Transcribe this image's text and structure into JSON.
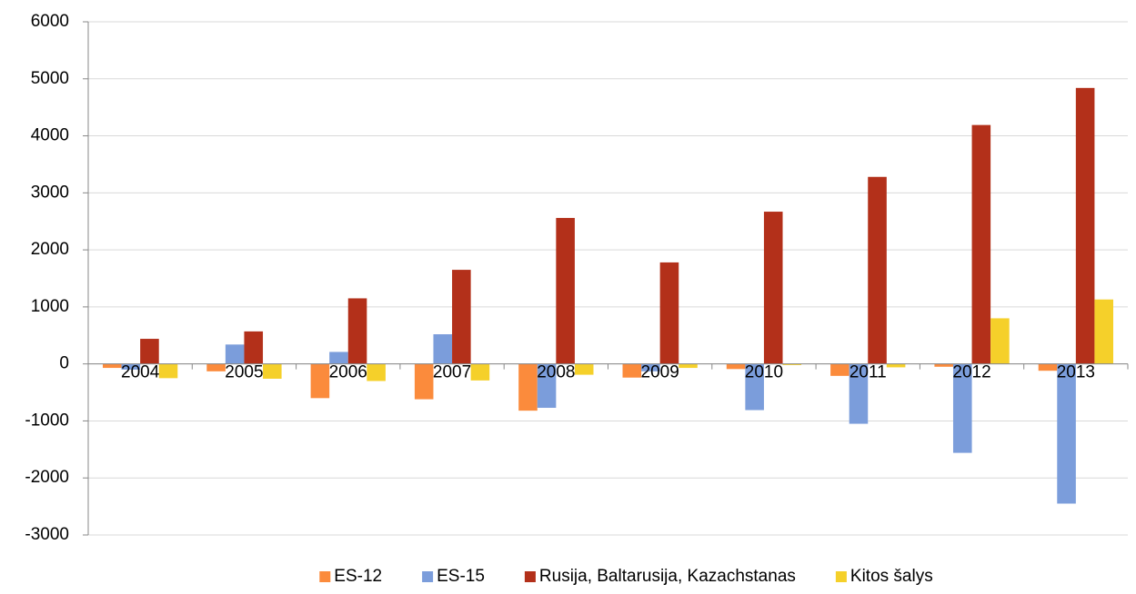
{
  "chart_data": {
    "type": "bar",
    "categories": [
      "2004",
      "2005",
      "2006",
      "2007",
      "2008",
      "2009",
      "2010",
      "2011",
      "2012",
      "2013"
    ],
    "series": [
      {
        "name": "ES-12",
        "color": "#fb8b3c",
        "values": [
          -70,
          -130,
          -600,
          -620,
          -820,
          -240,
          -90,
          -210,
          -50,
          -120
        ]
      },
      {
        "name": "ES-15",
        "color": "#7b9ddb",
        "values": [
          -100,
          340,
          210,
          520,
          -770,
          -130,
          -810,
          -1050,
          -1560,
          -2450
        ]
      },
      {
        "name": "Rusija, Baltarusija, Kazachstanas",
        "color": "#b3301a",
        "values": [
          440,
          570,
          1150,
          1650,
          2560,
          1780,
          2670,
          3280,
          4190,
          4840
        ]
      },
      {
        "name": "Kitos šalys",
        "color": "#f5d02a",
        "values": [
          -250,
          -260,
          -300,
          -290,
          -190,
          -70,
          -20,
          -60,
          800,
          1130
        ]
      }
    ],
    "ylim": [
      -3000,
      6000
    ],
    "yticks": [
      -3000,
      -2000,
      -1000,
      0,
      1000,
      2000,
      3000,
      4000,
      5000,
      6000
    ],
    "grid": true,
    "legend": "bottom"
  }
}
